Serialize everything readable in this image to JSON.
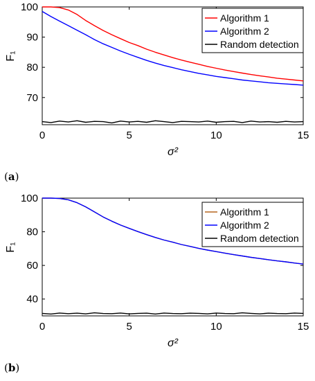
{
  "panels": [
    {
      "label_prefix": "(",
      "label_letter": "a",
      "label_suffix": ")"
    },
    {
      "label_prefix": "(",
      "label_letter": "b",
      "label_suffix": ")"
    }
  ],
  "chart_data": [
    {
      "type": "line",
      "ylabel": "F₁",
      "xlabel": "σ²",
      "xlim": [
        0,
        15
      ],
      "ylim": [
        61,
        100
      ],
      "xticks": [
        0,
        5,
        10,
        15
      ],
      "yticks": [
        70,
        80,
        90,
        100
      ],
      "grid": false,
      "legend_placement": "top-right",
      "series": [
        {
          "name": "Algorithm 1",
          "color": "#ff0000",
          "x": [
            0,
            0.5,
            1,
            1.5,
            2,
            2.5,
            3,
            3.5,
            4,
            4.5,
            5,
            5.5,
            6,
            6.5,
            7,
            7.5,
            8,
            8.5,
            9,
            9.5,
            10,
            10.5,
            11,
            11.5,
            12,
            12.5,
            13,
            13.5,
            14,
            14.5,
            15
          ],
          "y": [
            100,
            100,
            99.8,
            99,
            97.5,
            95.5,
            93.8,
            92.2,
            90.8,
            89.5,
            88.2,
            87.2,
            86,
            85,
            84.1,
            83.2,
            82.4,
            81.7,
            81,
            80.3,
            79.7,
            79.1,
            78.6,
            78.1,
            77.6,
            77.2,
            76.8,
            76.4,
            76.1,
            75.8,
            75.5
          ]
        },
        {
          "name": "Algorithm 2",
          "color": "#0000ff",
          "x": [
            0,
            0.5,
            1,
            1.5,
            2,
            2.5,
            3,
            3.5,
            4,
            4.5,
            5,
            5.5,
            6,
            6.5,
            7,
            7.5,
            8,
            8.5,
            9,
            9.5,
            10,
            10.5,
            11,
            11.5,
            12,
            12.5,
            13,
            13.5,
            14,
            14.5,
            15
          ],
          "y": [
            98.5,
            96.8,
            95.3,
            93.8,
            92.3,
            90.8,
            89.2,
            87.8,
            86.6,
            85.4,
            84.3,
            83.3,
            82.3,
            81.4,
            80.6,
            79.9,
            79.2,
            78.6,
            78,
            77.5,
            77,
            76.6,
            76.2,
            75.8,
            75.5,
            75.2,
            74.9,
            74.7,
            74.5,
            74.3,
            74.1
          ]
        },
        {
          "name": "Random detection",
          "color": "#000000",
          "x": [
            0,
            0.5,
            1,
            1.5,
            2,
            2.5,
            3,
            3.5,
            4,
            4.5,
            5,
            5.5,
            6,
            6.5,
            7,
            7.5,
            8,
            8.5,
            9,
            9.5,
            10,
            10.5,
            11,
            11.5,
            12,
            12.5,
            13,
            13.5,
            14,
            14.5,
            15
          ],
          "y": [
            62,
            61.7,
            62.2,
            61.9,
            62.3,
            61.8,
            62.1,
            62,
            61.6,
            62.2,
            61.9,
            62.1,
            61.8,
            62.3,
            62,
            61.7,
            62.1,
            62,
            61.9,
            62.2,
            61.8,
            62,
            62.1,
            61.7,
            62.2,
            61.9,
            62,
            61.8,
            62.1,
            61.9,
            62
          ]
        }
      ]
    },
    {
      "type": "line",
      "ylabel": "F₁",
      "xlabel": "σ²",
      "xlim": [
        0,
        15
      ],
      "ylim": [
        30,
        100
      ],
      "xticks": [
        0,
        5,
        10,
        15
      ],
      "yticks": [
        40,
        60,
        80,
        100
      ],
      "grid": false,
      "legend_placement": "top-right",
      "series": [
        {
          "name": "Algorithm 1",
          "color": "#b5651d",
          "x": [
            0,
            0.5,
            1,
            1.5,
            2,
            2.5,
            3,
            3.5,
            4,
            4.5,
            5,
            5.5,
            6,
            6.5,
            7,
            7.5,
            8,
            8.5,
            9,
            9.5,
            10,
            10.5,
            11,
            11.5,
            12,
            12.5,
            13,
            13.5,
            14,
            14.5,
            15
          ],
          "y": [
            100,
            100,
            99.8,
            99,
            97.3,
            94.8,
            91.8,
            88.8,
            86.3,
            84,
            82,
            80.1,
            78.3,
            76.6,
            75.1,
            73.8,
            72.4,
            71.3,
            70.1,
            69.1,
            68.2,
            67.3,
            66.4,
            65.6,
            64.8,
            64.1,
            63.4,
            62.7,
            62.1,
            61.4,
            60.8
          ]
        },
        {
          "name": "Algorithm 2",
          "color": "#0000ff",
          "x": [
            0,
            0.5,
            1,
            1.5,
            2,
            2.5,
            3,
            3.5,
            4,
            4.5,
            5,
            5.5,
            6,
            6.5,
            7,
            7.5,
            8,
            8.5,
            9,
            9.5,
            10,
            10.5,
            11,
            11.5,
            12,
            12.5,
            13,
            13.5,
            14,
            14.5,
            15
          ],
          "y": [
            100,
            100,
            99.8,
            99,
            97.3,
            94.8,
            91.8,
            88.8,
            86.3,
            84,
            82,
            80.1,
            78.3,
            76.6,
            75.1,
            73.8,
            72.4,
            71.3,
            70.1,
            69.1,
            68.2,
            67.3,
            66.4,
            65.6,
            64.8,
            64.1,
            63.4,
            62.7,
            62.1,
            61.4,
            60.8
          ]
        },
        {
          "name": "Random detection",
          "color": "#000000",
          "x": [
            0,
            0.5,
            1,
            1.5,
            2,
            2.5,
            3,
            3.5,
            4,
            4.5,
            5,
            5.5,
            6,
            6.5,
            7,
            7.5,
            8,
            8.5,
            9,
            9.5,
            10,
            10.5,
            11,
            11.5,
            12,
            12.5,
            13,
            13.5,
            14,
            14.5,
            15
          ],
          "y": [
            31.5,
            31.1,
            31.7,
            31.3,
            31.6,
            31.2,
            31.8,
            31.4,
            31.3,
            31.7,
            31.2,
            31.5,
            31.6,
            31.1,
            31.7,
            31.4,
            31.3,
            31.6,
            31.5,
            31.2,
            31.7,
            31.4,
            31.3,
            31.8,
            31.5,
            31.2,
            31.6,
            31.4,
            31.3,
            31.7,
            31.5
          ]
        }
      ]
    }
  ]
}
